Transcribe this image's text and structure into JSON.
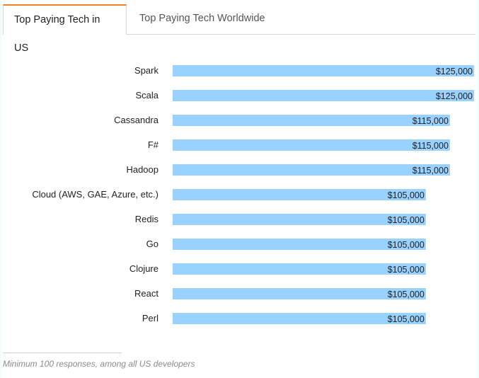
{
  "tabs": [
    {
      "label": "Top Paying Tech in US",
      "active": true
    },
    {
      "label": "Top Paying Tech Worldwide",
      "active": false
    }
  ],
  "footnote": "Minimum 100 responses, among all US developers",
  "colors": {
    "bar": "#99d1ff",
    "accent": "#f48024",
    "text": "#222222"
  },
  "chart_data": {
    "type": "bar",
    "orientation": "horizontal",
    "categories": [
      "Spark",
      "Scala",
      "Cassandra",
      "F#",
      "Hadoop",
      "Cloud (AWS, GAE, Azure, etc.)",
      "Redis",
      "Go",
      "Clojure",
      "React",
      "Perl"
    ],
    "values": [
      125000,
      125000,
      115000,
      115000,
      115000,
      105000,
      105000,
      105000,
      105000,
      105000,
      105000
    ],
    "value_labels": [
      "$125,000",
      "$125,000",
      "$115,000",
      "$115,000",
      "$115,000",
      "$105,000",
      "$105,000",
      "$105,000",
      "$105,000",
      "$105,000",
      "$105,000"
    ],
    "xlim": [
      0,
      125000
    ],
    "grid": false,
    "legend": "none"
  }
}
